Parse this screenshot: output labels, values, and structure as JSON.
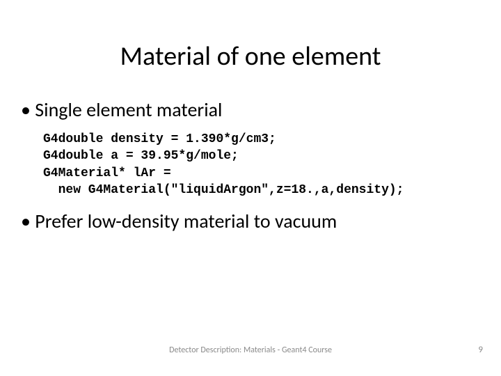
{
  "title": "Material of one element",
  "bullets": {
    "b1": "Single element material",
    "b2": "Prefer low-density material to vacuum"
  },
  "code": {
    "line1": "G4double density = 1.390*g/cm3;",
    "line2": "G4double a = 39.95*g/mole;",
    "line3": "G4Material* lAr =",
    "line4": "  new G4Material(\"liquidArgon\",z=18.,a,density);"
  },
  "footer": "Detector Description: Materials - Geant4 Course",
  "page_number": "9",
  "colors": {
    "title": "#000000",
    "text": "#000000",
    "footer": "#8a8a8a",
    "background": "#ffffff"
  },
  "typography": {
    "title_fontsize": 38,
    "bullet_fontsize": 28,
    "code_fontsize": 18,
    "footer_fontsize": 12,
    "code_font": "Courier New",
    "body_font": "Calibri"
  }
}
